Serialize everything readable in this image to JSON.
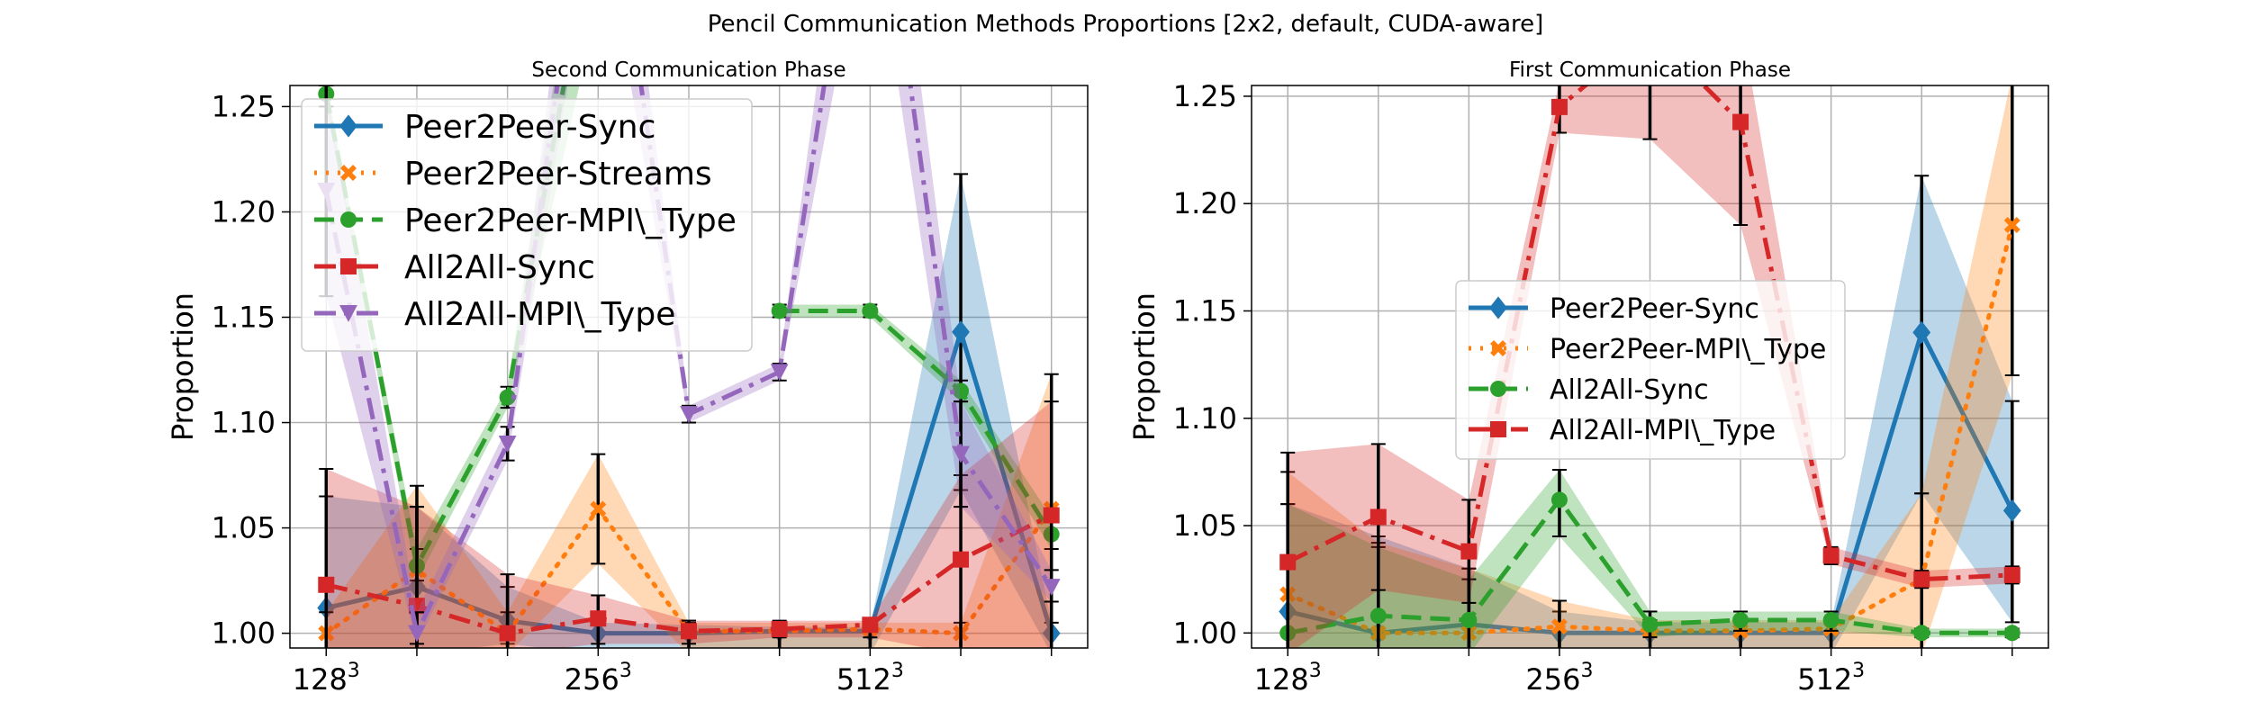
{
  "figure": {
    "suptitle": "Pencil Communication Methods Proportions [2x2, default, CUDA-aware]"
  },
  "chart_data": [
    {
      "type": "line",
      "title": "Second Communication Phase",
      "xlabel": "",
      "ylabel": "Proportion",
      "x_tick_labels": [
        "128",
        "256",
        "512"
      ],
      "x_tick_superscript": "3",
      "x_tick_positions": [
        0,
        3,
        6
      ],
      "x": [
        0,
        1,
        2,
        3,
        4,
        5,
        6,
        7,
        8
      ],
      "xlim": [
        -0.4,
        8.4
      ],
      "ylim": [
        0.993,
        1.26
      ],
      "y_ticks": [
        1.0,
        1.05,
        1.1,
        1.15,
        1.2,
        1.25
      ],
      "y_tick_labels": [
        "1.00",
        "1.05",
        "1.10",
        "1.15",
        "1.20",
        "1.25"
      ],
      "grid": true,
      "legend_position": "top-left",
      "series": [
        {
          "name": "Peer2Peer-Sync",
          "color": "#1f77b4",
          "dash": "solid",
          "marker": "diamond",
          "values": [
            1.012,
            1.022,
            1.006,
            1.0,
            1.0,
            1.001,
            1.001,
            1.143,
            1.0
          ],
          "lower": [
            0.99,
            0.99,
            0.995,
            0.99,
            0.99,
            0.99,
            0.99,
            1.068,
            0.99
          ],
          "upper": [
            1.065,
            1.06,
            1.022,
            1.005,
            1.004,
            1.003,
            1.003,
            1.218,
            1.005
          ]
        },
        {
          "name": "Peer2Peer-Streams",
          "color": "#ff7f0e",
          "dash": "dotted",
          "marker": "x",
          "values": [
            1.0,
            1.03,
            1.0,
            1.059,
            1.001,
            1.001,
            1.002,
            1.0,
            1.059
          ],
          "lower": [
            0.99,
            0.99,
            0.99,
            1.033,
            0.99,
            0.99,
            0.99,
            0.99,
            0.99
          ],
          "upper": [
            1.01,
            1.07,
            1.01,
            1.085,
            1.005,
            1.005,
            1.005,
            1.005,
            1.123
          ]
        },
        {
          "name": "Peer2Peer-MPI\\_Type",
          "color": "#2ca02c",
          "dash": "dashed",
          "marker": "circle",
          "values": [
            1.256,
            1.032,
            1.112,
            1.35,
            null,
            1.153,
            1.153,
            1.115,
            1.047
          ],
          "lower": [
            1.25,
            1.025,
            1.107,
            1.3,
            null,
            1.15,
            1.15,
            1.11,
            1.04
          ],
          "upper": [
            1.26,
            1.04,
            1.117,
            1.4,
            null,
            1.156,
            1.156,
            1.12,
            1.055
          ]
        },
        {
          "name": "All2All-Sync",
          "color": "#d62728",
          "dash": "dashdot",
          "marker": "square",
          "values": [
            1.023,
            1.013,
            1.0,
            1.007,
            1.001,
            1.002,
            1.004,
            1.035,
            1.056
          ],
          "lower": [
            0.99,
            0.99,
            0.99,
            0.995,
            0.995,
            0.998,
            0.998,
            0.99,
            0.99
          ],
          "upper": [
            1.078,
            1.06,
            1.028,
            1.018,
            1.006,
            1.006,
            1.006,
            1.075,
            1.11
          ]
        },
        {
          "name": "All2All-MPI\\_Type",
          "color": "#9467bd",
          "dash": "dashdot",
          "marker": "triangle-down",
          "values": [
            1.21,
            1.0,
            1.09,
            1.4,
            1.104,
            1.124,
            1.4,
            1.085,
            1.022
          ],
          "lower": [
            1.16,
            0.995,
            1.082,
            1.35,
            1.1,
            1.12,
            1.35,
            1.06,
            1.015
          ],
          "upper": [
            1.26,
            1.01,
            1.098,
            1.45,
            1.108,
            1.128,
            1.45,
            1.11,
            1.03
          ]
        }
      ]
    },
    {
      "type": "line",
      "title": "First Communication Phase",
      "xlabel": "",
      "ylabel": "Proportion",
      "x_tick_labels": [
        "128",
        "256",
        "512"
      ],
      "x_tick_superscript": "3",
      "x_tick_positions": [
        0,
        3,
        6
      ],
      "x": [
        0,
        1,
        2,
        3,
        4,
        5,
        6,
        7,
        8
      ],
      "xlim": [
        -0.4,
        8.4
      ],
      "ylim": [
        0.993,
        1.255
      ],
      "y_ticks": [
        1.0,
        1.05,
        1.1,
        1.15,
        1.2,
        1.25
      ],
      "y_tick_labels": [
        "1.00",
        "1.05",
        "1.10",
        "1.15",
        "1.20",
        "1.25"
      ],
      "grid": true,
      "legend_position": "center",
      "series": [
        {
          "name": "Peer2Peer-Sync",
          "color": "#1f77b4",
          "dash": "solid",
          "marker": "diamond",
          "values": [
            1.01,
            1.0,
            1.004,
            1.0,
            1.0,
            1.0,
            1.0,
            1.14,
            1.057
          ],
          "lower": [
            0.99,
            0.99,
            0.99,
            0.99,
            0.99,
            0.99,
            0.99,
            1.065,
            1.005
          ],
          "upper": [
            1.06,
            1.045,
            1.03,
            1.01,
            1.005,
            1.005,
            1.005,
            1.213,
            1.108
          ]
        },
        {
          "name": "Peer2Peer-MPI\\_Type",
          "color": "#ff7f0e",
          "dash": "dotted",
          "marker": "x",
          "values": [
            1.018,
            1.0,
            1.0,
            1.003,
            1.001,
            1.001,
            1.002,
            1.025,
            1.19
          ],
          "lower": [
            0.99,
            0.99,
            0.99,
            0.99,
            0.99,
            0.99,
            0.99,
            0.99,
            1.12
          ],
          "upper": [
            1.075,
            1.042,
            1.03,
            1.015,
            1.006,
            1.006,
            1.006,
            1.065,
            1.26
          ]
        },
        {
          "name": "All2All-Sync",
          "color": "#2ca02c",
          "dash": "dashed",
          "marker": "circle",
          "values": [
            1.0,
            1.008,
            1.006,
            1.062,
            1.004,
            1.006,
            1.006,
            1.0,
            1.0
          ],
          "lower": [
            0.99,
            0.99,
            0.99,
            1.045,
            0.998,
            1.001,
            1.001,
            0.998,
            0.998
          ],
          "upper": [
            1.06,
            1.04,
            1.025,
            1.076,
            1.01,
            1.01,
            1.01,
            1.002,
            1.002
          ]
        },
        {
          "name": "All2All-MPI\\_Type",
          "color": "#d62728",
          "dash": "dashdot",
          "marker": "square",
          "values": [
            1.033,
            1.054,
            1.038,
            1.245,
            1.28,
            1.238,
            1.036,
            1.025,
            1.027
          ],
          "lower": [
            0.99,
            1.02,
            1.014,
            1.233,
            1.23,
            1.19,
            1.032,
            1.021,
            1.023
          ],
          "upper": [
            1.084,
            1.088,
            1.062,
            1.257,
            1.33,
            1.286,
            1.04,
            1.029,
            1.031
          ]
        }
      ]
    }
  ]
}
